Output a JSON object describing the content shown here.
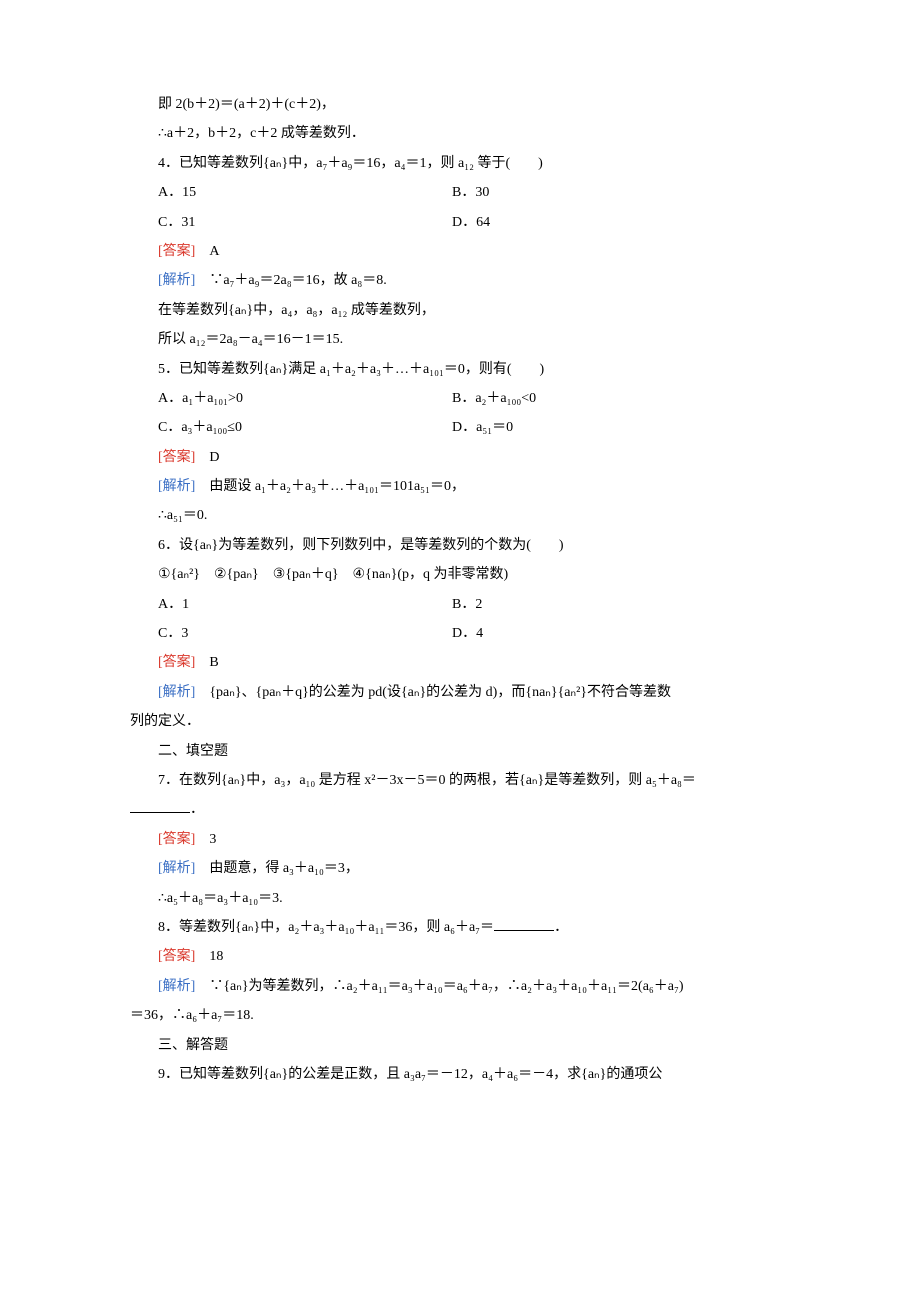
{
  "intro1": "即 2(b＋2)＝(a＋2)＋(c＋2)，",
  "intro2": "∴a＋2，b＋2，c＋2 成等差数列．",
  "q4": {
    "stem": "4．已知等差数列{aₙ}中，a₇＋a₉＝16，a₄＝1，则 a₁₂ 等于(　　)",
    "optA": "A．15",
    "optB": "B．30",
    "optC": "C．31",
    "optD": "D．64",
    "ansLabel": "[答案]",
    "ans": "A",
    "expLabel": "[解析]",
    "exp1": "∵a₇＋a₉＝2a₈＝16，故 a₈＝8.",
    "exp2": "在等差数列{aₙ}中，a₄，a₈，a₁₂ 成等差数列，",
    "exp3": "所以 a₁₂＝2a₈－a₄＝16－1＝15."
  },
  "q5": {
    "stem": "5．已知等差数列{aₙ}满足 a₁＋a₂＋a₃＋…＋a₁₀₁＝0，则有(　　)",
    "optA": "A．a₁＋a₁₀₁>0",
    "optB": "B．a₂＋a₁₀₀<0",
    "optC": "C．a₃＋a₁₀₀≤0",
    "optD": "D．a₅₁＝0",
    "ansLabel": "[答案]",
    "ans": "D",
    "expLabel": "[解析]",
    "exp1": "由题设 a₁＋a₂＋a₃＋…＋a₁₀₁＝101a₅₁＝0，",
    "exp2": "∴a₅₁＝0."
  },
  "q6": {
    "stem": "6．设{aₙ}为等差数列，则下列数列中，是等差数列的个数为(　　)",
    "sub": "①{aₙ²}　②{paₙ}　③{paₙ＋q}　④{naₙ}(p，q 为非零常数)",
    "optA": "A．1",
    "optB": "B．2",
    "optC": "C．3",
    "optD": "D．4",
    "ansLabel": "[答案]",
    "ans": "B",
    "expLabel": "[解析]",
    "exp1a": "{paₙ}、{paₙ＋q}的公差为 pd(设{aₙ}的公差为 d)，而{naₙ}{aₙ²}不符合等差数",
    "exp1b": "列的定义．"
  },
  "section2": "二、填空题",
  "q7": {
    "stem1": "7．在数列{aₙ}中，a₃，a₁₀ 是方程 x²－3x－5＝0 的两根，若{aₙ}是等差数列，则 a₅＋a₈＝",
    "stem2": "．",
    "ansLabel": "[答案]",
    "ans": "3",
    "expLabel": "[解析]",
    "exp1": "由题意，得 a₃＋a₁₀＝3，",
    "exp2": "∴a₅＋a₈＝a₃＋a₁₀＝3."
  },
  "q8": {
    "stem": "8．等差数列{aₙ}中，a₂＋a₃＋a₁₀＋a₁₁＝36，则 a₆＋a₇＝",
    "stemEnd": "．",
    "ansLabel": "[答案]",
    "ans": "18",
    "expLabel": "[解析]",
    "exp1a": "∵{aₙ}为等差数列，∴a₂＋a₁₁＝a₃＋a₁₀＝a₆＋a₇，∴a₂＋a₃＋a₁₀＋a₁₁＝2(a₆＋a₇)",
    "exp1b": "＝36，∴a₆＋a₇＝18."
  },
  "section3": "三、解答题",
  "q9": {
    "stem": "9．已知等差数列{aₙ}的公差是正数，且 a₃a₇＝－12，a₄＋a₆＝－4，求{aₙ}的通项公"
  }
}
